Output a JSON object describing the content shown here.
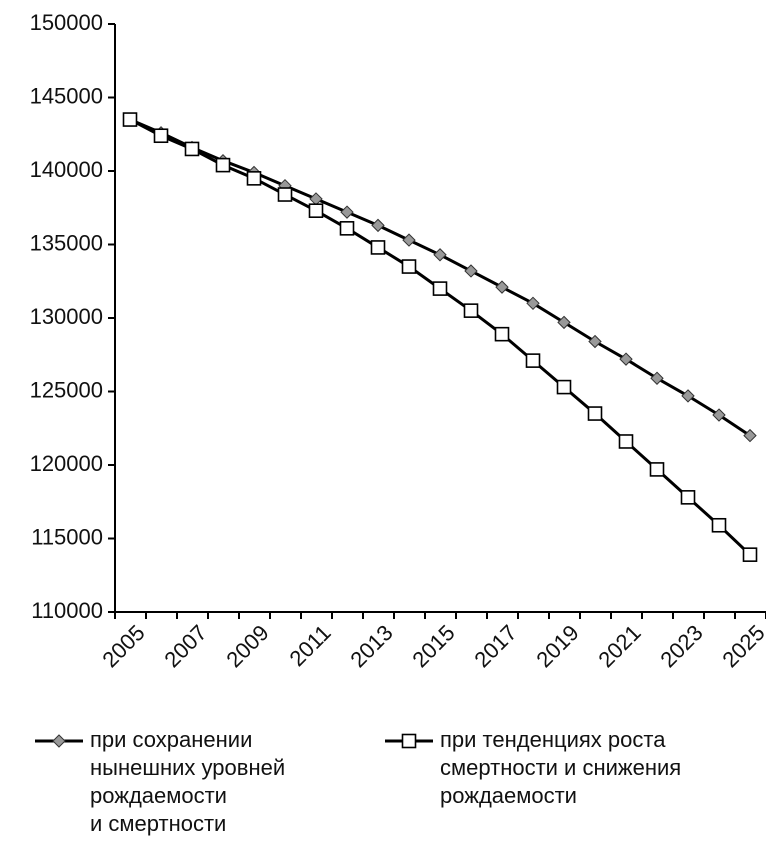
{
  "chart_data": {
    "type": "line",
    "categories": [
      "2005",
      null,
      "2007",
      null,
      "2009",
      null,
      "2011",
      null,
      "2013",
      null,
      "2015",
      null,
      "2017",
      null,
      "2019",
      null,
      "2021",
      null,
      "2023",
      null,
      "2025"
    ],
    "series": [
      {
        "name": "при сохранении\nнынешних уровней\nрождаемости\nи смертности",
        "color": "#000000",
        "marker": "diamond",
        "marker_color": "#999999",
        "values": [
          143500,
          142600,
          141600,
          140700,
          139900,
          139000,
          138100,
          137200,
          136300,
          135300,
          134300,
          133200,
          132100,
          131000,
          129700,
          128400,
          127200,
          125900,
          124700,
          123400,
          122000
        ]
      },
      {
        "name": "при тенденциях роста\nсмертности и снижения\nрождаемости",
        "color": "#000000",
        "marker": "square",
        "marker_color": "#ffffff",
        "values": [
          143500,
          142400,
          141500,
          140400,
          139500,
          138400,
          137300,
          136100,
          134800,
          133500,
          132000,
          130500,
          128900,
          127100,
          125300,
          123500,
          121600,
          119700,
          117800,
          115900,
          113900
        ]
      }
    ],
    "ylim": [
      110000,
      150000
    ],
    "yticks": [
      110000,
      115000,
      120000,
      125000,
      130000,
      135000,
      140000,
      145000,
      150000
    ],
    "grid": false,
    "legend": "bottom"
  }
}
